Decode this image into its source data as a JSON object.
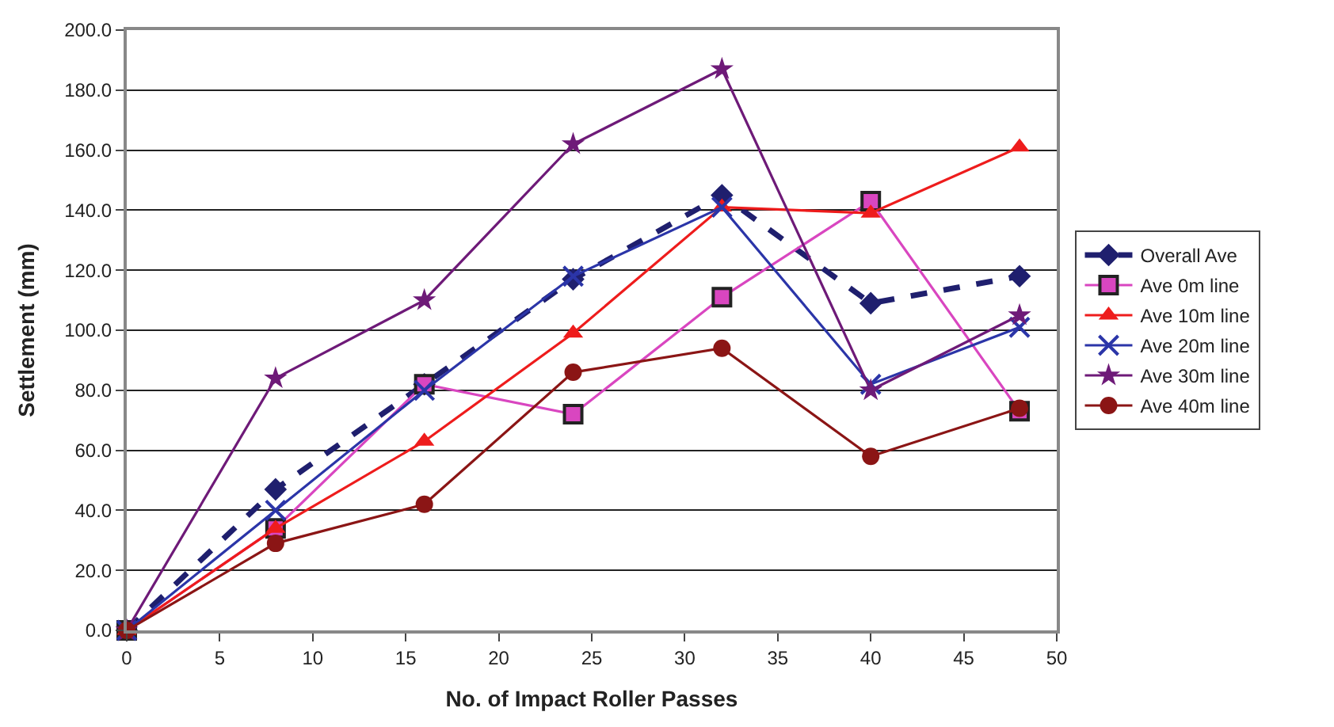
{
  "chart_data": {
    "type": "line",
    "xlabel": "No. of Impact Roller Passes",
    "ylabel": "Settlement (mm)",
    "x": [
      0,
      8,
      16,
      24,
      32,
      40,
      48
    ],
    "xlim": [
      0,
      50
    ],
    "xticks": [
      0,
      5,
      10,
      15,
      20,
      25,
      30,
      35,
      40,
      45,
      50
    ],
    "ylim": [
      0,
      200
    ],
    "yticks": [
      {
        "value": 0,
        "label": "0.0"
      },
      {
        "value": 20,
        "label": "20.0"
      },
      {
        "value": 40,
        "label": "40.0"
      },
      {
        "value": 60,
        "label": "60.0"
      },
      {
        "value": 80,
        "label": "80.0"
      },
      {
        "value": 100,
        "label": "100.0"
      },
      {
        "value": 120,
        "label": "120.0"
      },
      {
        "value": 140,
        "label": "140.0"
      },
      {
        "value": 160,
        "label": "160.0"
      },
      {
        "value": 180,
        "label": "180.0"
      },
      {
        "value": 200,
        "label": "200.0"
      }
    ],
    "grid": "y",
    "legend": "right",
    "series": [
      {
        "name": "Overall Ave",
        "color": "#1f1f6e",
        "marker": "diamond",
        "line_style": "dashed",
        "values": [
          0,
          47,
          82,
          117,
          145,
          109,
          118
        ]
      },
      {
        "name": "Ave 0m line",
        "color": "#d946c0",
        "marker": "square",
        "line_style": "solid",
        "values": [
          0,
          34,
          82,
          72,
          111,
          143,
          73
        ]
      },
      {
        "name": "Ave 10m line",
        "color": "#ee1c1c",
        "marker": "triangle",
        "line_style": "solid",
        "values": [
          0,
          34,
          63,
          99,
          141,
          139,
          161
        ]
      },
      {
        "name": "Ave 20m line",
        "color": "#2b35a8",
        "marker": "cross",
        "line_style": "solid",
        "values": [
          0,
          40,
          80,
          118,
          141,
          82,
          101
        ]
      },
      {
        "name": "Ave 30m line",
        "color": "#6e1a78",
        "marker": "star",
        "line_style": "solid",
        "values": [
          0,
          84,
          110,
          162,
          187,
          80,
          105
        ]
      },
      {
        "name": "Ave 40m line",
        "color": "#8b1515",
        "marker": "circle",
        "line_style": "solid",
        "values": [
          0,
          29,
          42,
          86,
          94,
          58,
          74
        ]
      }
    ]
  }
}
